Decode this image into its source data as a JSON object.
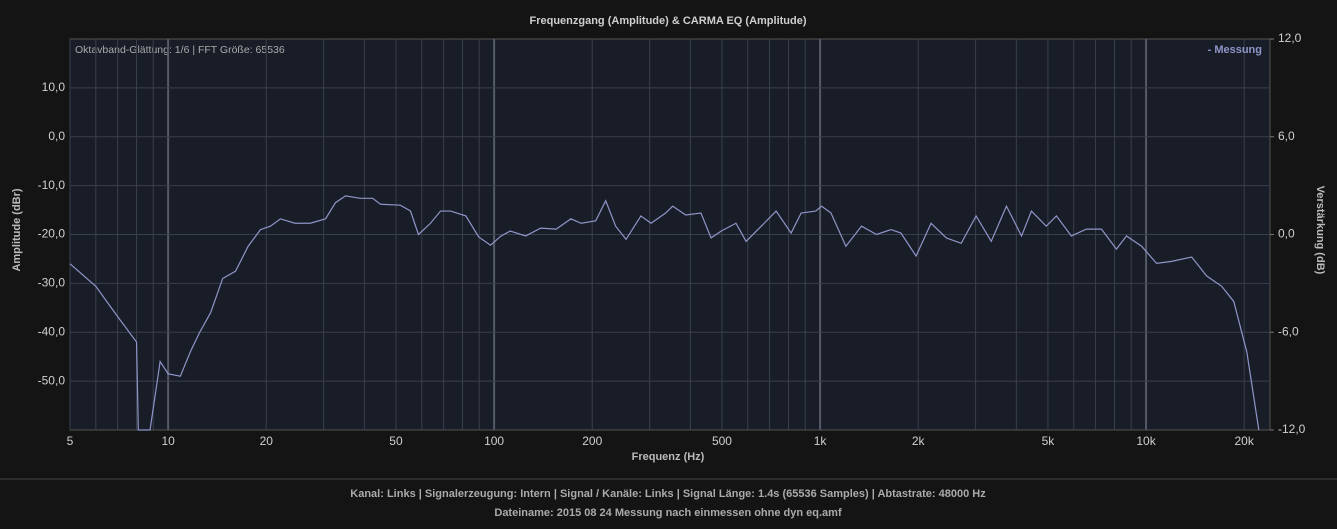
{
  "chart_data": {
    "type": "line",
    "title": "Frequenzgang (Amplitude) & CARMA EQ (Amplitude)",
    "annotation": "Oktavband-Glättung: 1/6 | FFT Größe: 65536",
    "x_label": "Frequenz (Hz)",
    "y_label": "Amplitude (dBr)",
    "y2_label": "Verstärkung (dB)",
    "x_scale": "log",
    "xlim": [
      5,
      24000
    ],
    "xticks": [
      5,
      10,
      20,
      50,
      100,
      200,
      500,
      {
        "value": 1000,
        "label": "1k"
      },
      {
        "value": 2000,
        "label": "2k"
      },
      {
        "value": 5000,
        "label": "5k"
      },
      {
        "value": 10000,
        "label": "10k"
      },
      {
        "value": 20000,
        "label": "20k"
      }
    ],
    "minor_xgrid": [
      6,
      7,
      8,
      9,
      30,
      40,
      60,
      70,
      80,
      90,
      300,
      400,
      600,
      700,
      800,
      900,
      3000,
      4000,
      6000,
      7000,
      8000,
      9000
    ],
    "ylim": [
      -60,
      20
    ],
    "yticks": [
      {
        "value": 10,
        "label": "10,0"
      },
      {
        "value": 0,
        "label": "0,0"
      },
      {
        "value": -10,
        "label": "-10,0"
      },
      {
        "value": -20,
        "label": "-20,0"
      },
      {
        "value": -30,
        "label": "-30,0"
      },
      {
        "value": -40,
        "label": "-40,0"
      },
      {
        "value": -50,
        "label": "-50,0"
      }
    ],
    "y2lim": [
      -12,
      12
    ],
    "y2ticks": [
      {
        "value": 12,
        "label": "12,0"
      },
      {
        "value": 6,
        "label": "6,0"
      },
      {
        "value": 0,
        "label": "0,0"
      },
      {
        "value": -6,
        "label": "-6,0"
      },
      {
        "value": -12,
        "label": "-12,0"
      }
    ],
    "grid": true,
    "legend": "top-right",
    "x": [
      5,
      6,
      7,
      8,
      8.1,
      8.8,
      9.45,
      10,
      10.9,
      11.7,
      12.5,
      13.5,
      14.7,
      16.1,
      17.6,
      19.2,
      20.6,
      22.1,
      24.5,
      27.3,
      30.4,
      32.6,
      35,
      38.9,
      42.4,
      44.8,
      51.6,
      55.4,
      58.6,
      63.8,
      68.5,
      73.5,
      81.9,
      89.7,
      97.5,
      105,
      112,
      125,
      139,
      155,
      172,
      185,
      205,
      220,
      236,
      254,
      282,
      303,
      336,
      353,
      387,
      431,
      463,
      497,
      552,
      593,
      660,
      733,
      815,
      875,
      970,
      1010,
      1080,
      1200,
      1340,
      1490,
      1650,
      1770,
      1970,
      2190,
      2440,
      2710,
      3010,
      3350,
      3730,
      4150,
      4450,
      4940,
      5310,
      5900,
      6560,
      7300,
      8110,
      8710,
      9690,
      10770,
      11970,
      13800,
      15350,
      17060,
      18580,
      20370,
      22180
    ],
    "series": [
      {
        "name": "- Messung",
        "color": "#8f95c8",
        "values": [
          -26,
          -30.6,
          -36.8,
          -42,
          -60,
          -60,
          -46,
          -48.5,
          -49,
          -44,
          -40,
          -36,
          -29,
          -27.5,
          -22.4,
          -19,
          -18.3,
          -16.8,
          -17.7,
          -17.7,
          -16.8,
          -13.5,
          -12.1,
          -12.6,
          -12.6,
          -13.8,
          -14,
          -15.2,
          -20,
          -17.7,
          -15.2,
          -15.2,
          -16.2,
          -20.5,
          -22.2,
          -20.3,
          -19.3,
          -20.3,
          -18.7,
          -18.9,
          -16.8,
          -17.7,
          -17.2,
          -13.1,
          -18.3,
          -21,
          -16.2,
          -17.7,
          -15.6,
          -14.2,
          -16,
          -15.6,
          -20.7,
          -19.3,
          -17.7,
          -21.4,
          -18.3,
          -15.2,
          -19.7,
          -15.6,
          -15.2,
          -14.2,
          -15.6,
          -22.4,
          -18.3,
          -20,
          -19,
          -19.7,
          -24.4,
          -17.7,
          -20.7,
          -21.8,
          -16.2,
          -21.4,
          -14.2,
          -20.3,
          -15.2,
          -18.3,
          -16.2,
          -20.3,
          -18.9,
          -18.9,
          -23,
          -20.3,
          -22.4,
          -25.9,
          -25.5,
          -24.6,
          -28.5,
          -30.6,
          -33.7,
          -44,
          -60
        ]
      }
    ]
  },
  "footer": {
    "line1": "Kanal: Links  |  Signalerzeugung: Intern  |  Signal / Kanäle: Links  |  Signal Länge: 1.4s (65536 Samples)  |  Abtastrate: 48000 Hz",
    "line2": "Dateiname: 2015 08 24 Messung nach einmessen ohne dyn eq.amf"
  }
}
